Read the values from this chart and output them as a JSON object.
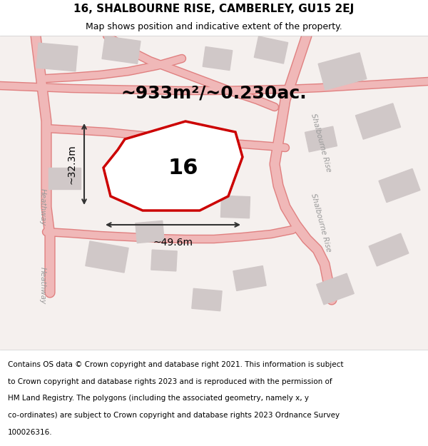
{
  "title_line1": "16, SHALBOURNE RISE, CAMBERLEY, GU15 2EJ",
  "title_line2": "Map shows position and indicative extent of the property.",
  "area_text": "~933m²/~0.230ac.",
  "property_number": "16",
  "width_label": "~49.6m",
  "height_label": "~32.3m",
  "footer_text": "Contains OS data © Crown copyright and database right 2021. This information is subject to Crown copyright and database rights 2023 and is reproduced with the permission of HM Land Registry. The polygons (including the associated geometry, namely x, y co-ordinates) are subject to Crown copyright and database rights 2023 Ordnance Survey 100026316.",
  "background_color": "#ffffff",
  "map_bg_color": "#f5f0f0",
  "road_color": "#f0b8b8",
  "road_outline_color": "#e87878",
  "building_color": "#d8d0d0",
  "property_fill": "#ffffff",
  "property_outline": "#cc0000",
  "dimension_line_color": "#333333",
  "title_fontsize": 11,
  "subtitle_fontsize": 9,
  "area_fontsize": 18,
  "number_fontsize": 22,
  "dim_fontsize": 10,
  "footer_fontsize": 7.5
}
